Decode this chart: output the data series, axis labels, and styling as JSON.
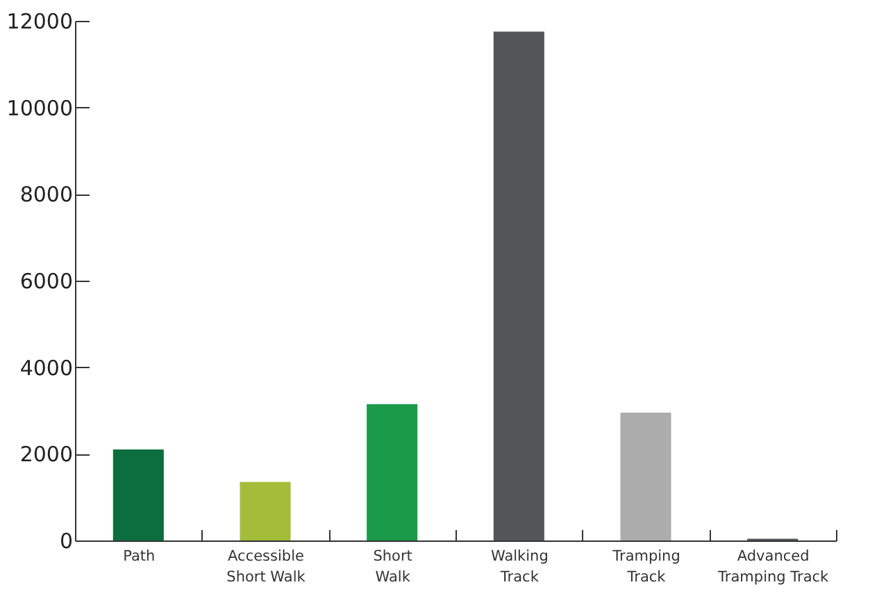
{
  "chart_data": {
    "type": "bar",
    "categories": [
      "Path",
      "Accessible\nShort Walk",
      "Short\nWalk",
      "Walking\nTrack",
      "Tramping\nTrack",
      "Advanced\nTramping Track"
    ],
    "values": [
      2100,
      1350,
      3150,
      11750,
      2950,
      40
    ],
    "colors": [
      "#0c6e3e",
      "#a3bd3a",
      "#1b9a4a",
      "#525659",
      "#acacac",
      "#525659"
    ],
    "ylim": [
      0,
      12000
    ],
    "yticks": [
      0,
      2000,
      4000,
      6000,
      8000,
      10000,
      12000
    ],
    "grid": false
  }
}
